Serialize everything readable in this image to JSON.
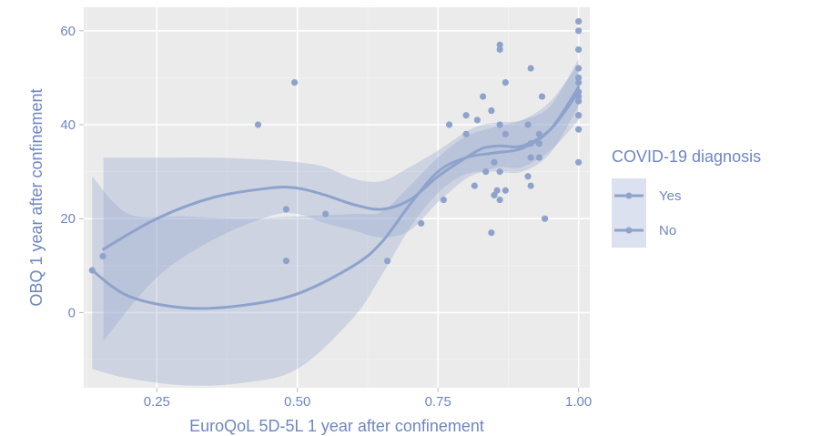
{
  "colors": {
    "panel_bg": "#ebebeb",
    "grid_major": "#ffffff",
    "grid_minor": "#f4f4f4",
    "accent": "#8ea3cc",
    "text": "#6f86c0"
  },
  "chart_data": {
    "type": "scatter",
    "xlabel": "EuroQoL 5D-5L 1 year after confinement",
    "ylabel": "OBQ 1 year after confinement",
    "xlim": [
      0.12,
      1.02
    ],
    "ylim": [
      -16,
      65
    ],
    "x_ticks": [
      0.25,
      0.5,
      0.75,
      1.0
    ],
    "x_tick_labels": [
      "0.25",
      "0.50",
      "0.75",
      "1.00"
    ],
    "y_ticks": [
      0,
      20,
      40,
      60
    ],
    "y_tick_labels": [
      "0",
      "20",
      "40",
      "60"
    ],
    "grid": true,
    "legend": {
      "title": "COVID-19 diagnosis",
      "placement": "right",
      "entries": [
        "Yes",
        "No"
      ]
    },
    "series": [
      {
        "name": "Yes",
        "points": [
          [
            0.154,
            12
          ],
          [
            0.43,
            40
          ],
          [
            0.495,
            49
          ],
          [
            0.55,
            21
          ],
          [
            0.76,
            24
          ],
          [
            0.77,
            40
          ],
          [
            0.8,
            42
          ],
          [
            0.815,
            27
          ],
          [
            0.82,
            41
          ],
          [
            0.83,
            46
          ],
          [
            0.835,
            30
          ],
          [
            0.845,
            43
          ],
          [
            0.85,
            25
          ],
          [
            0.85,
            32
          ],
          [
            0.855,
            26
          ],
          [
            0.86,
            56
          ],
          [
            0.86,
            30
          ],
          [
            0.87,
            49
          ],
          [
            0.87,
            26
          ],
          [
            0.915,
            52
          ],
          [
            0.915,
            36
          ],
          [
            0.915,
            33
          ],
          [
            0.93,
            38
          ],
          [
            0.93,
            33
          ],
          [
            0.935,
            46
          ],
          [
            0.94,
            20
          ],
          [
            1.0,
            62
          ],
          [
            1.0,
            60
          ],
          [
            1.0,
            56
          ],
          [
            1.0,
            52
          ],
          [
            1.0,
            50
          ],
          [
            1.0,
            47
          ],
          [
            1.0,
            45
          ],
          [
            1.0,
            42
          ],
          [
            1.0,
            32
          ]
        ],
        "smooth": [
          [
            0.155,
            13.5
          ],
          [
            0.25,
            20
          ],
          [
            0.35,
            24.5
          ],
          [
            0.45,
            26.5
          ],
          [
            0.5,
            26.5
          ],
          [
            0.55,
            25
          ],
          [
            0.6,
            23
          ],
          [
            0.65,
            22
          ],
          [
            0.7,
            24
          ],
          [
            0.75,
            29
          ],
          [
            0.8,
            33
          ],
          [
            0.83,
            35
          ],
          [
            0.86,
            35.5
          ],
          [
            0.9,
            35.5
          ],
          [
            0.95,
            39
          ],
          [
            1.0,
            47
          ]
        ],
        "ci_upper": [
          [
            0.155,
            33
          ],
          [
            0.25,
            33
          ],
          [
            0.35,
            33
          ],
          [
            0.45,
            32.5
          ],
          [
            0.5,
            32
          ],
          [
            0.55,
            31
          ],
          [
            0.6,
            28.5
          ],
          [
            0.65,
            28
          ],
          [
            0.7,
            31
          ],
          [
            0.75,
            34.5
          ],
          [
            0.8,
            38.5
          ],
          [
            0.83,
            40
          ],
          [
            0.86,
            40.5
          ],
          [
            0.9,
            41
          ],
          [
            0.95,
            44
          ],
          [
            1.0,
            54
          ]
        ],
        "ci_lower": [
          [
            0.155,
            -6
          ],
          [
            0.25,
            7.5
          ],
          [
            0.35,
            15.5
          ],
          [
            0.45,
            20.5
          ],
          [
            0.5,
            21
          ],
          [
            0.55,
            19
          ],
          [
            0.6,
            17.5
          ],
          [
            0.65,
            16
          ],
          [
            0.7,
            17.5
          ],
          [
            0.75,
            23.5
          ],
          [
            0.8,
            28.5
          ],
          [
            0.83,
            30
          ],
          [
            0.86,
            31
          ],
          [
            0.9,
            31
          ],
          [
            0.95,
            34.5
          ],
          [
            1.0,
            41
          ]
        ]
      },
      {
        "name": "No",
        "points": [
          [
            0.135,
            9
          ],
          [
            0.48,
            22
          ],
          [
            0.48,
            11
          ],
          [
            0.66,
            11
          ],
          [
            0.72,
            19
          ],
          [
            0.8,
            38
          ],
          [
            0.845,
            17
          ],
          [
            0.86,
            40
          ],
          [
            0.86,
            57
          ],
          [
            0.86,
            24
          ],
          [
            0.87,
            38
          ],
          [
            0.91,
            40
          ],
          [
            0.91,
            29
          ],
          [
            0.915,
            27
          ],
          [
            0.93,
            36
          ],
          [
            1.0,
            49
          ],
          [
            1.0,
            46
          ],
          [
            1.0,
            42
          ],
          [
            1.0,
            39
          ]
        ],
        "smooth": [
          [
            0.135,
            9
          ],
          [
            0.2,
            3.5
          ],
          [
            0.3,
            1
          ],
          [
            0.4,
            1.5
          ],
          [
            0.5,
            4
          ],
          [
            0.6,
            10
          ],
          [
            0.65,
            15
          ],
          [
            0.7,
            23
          ],
          [
            0.75,
            30
          ],
          [
            0.8,
            33
          ],
          [
            0.85,
            34
          ],
          [
            0.9,
            35
          ],
          [
            0.95,
            39
          ],
          [
            1.0,
            48
          ]
        ],
        "ci_upper": [
          [
            0.135,
            29
          ],
          [
            0.2,
            21
          ],
          [
            0.3,
            20.5
          ],
          [
            0.4,
            20
          ],
          [
            0.5,
            20.5
          ],
          [
            0.6,
            21
          ],
          [
            0.65,
            21.5
          ],
          [
            0.7,
            27
          ],
          [
            0.75,
            33
          ],
          [
            0.8,
            37.5
          ],
          [
            0.85,
            39.5
          ],
          [
            0.9,
            41
          ],
          [
            0.95,
            45
          ],
          [
            1.0,
            53
          ]
        ],
        "ci_lower": [
          [
            0.135,
            -12
          ],
          [
            0.2,
            -14
          ],
          [
            0.3,
            -15.5
          ],
          [
            0.4,
            -15
          ],
          [
            0.5,
            -12
          ],
          [
            0.6,
            -1
          ],
          [
            0.65,
            8
          ],
          [
            0.7,
            18
          ],
          [
            0.75,
            25.5
          ],
          [
            0.8,
            29.5
          ],
          [
            0.85,
            30
          ],
          [
            0.9,
            30
          ],
          [
            0.95,
            34
          ],
          [
            1.0,
            44
          ]
        ]
      }
    ]
  }
}
